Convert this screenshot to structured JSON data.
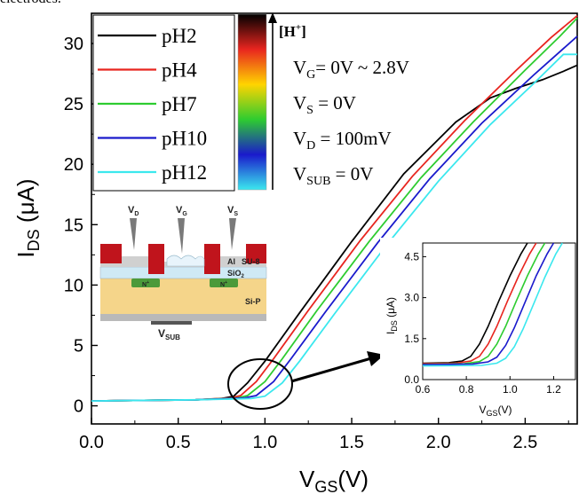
{
  "caption_fragment": "electrodes.",
  "chart_data": [
    {
      "type": "line",
      "x_label": "V",
      "x_label_sub": "GS",
      "x_label_tail": "(V)",
      "y_label": "I",
      "y_label_sub": "DS",
      "y_label_tail": " (μA)",
      "xlim": [
        0.0,
        2.8
      ],
      "ylim": [
        -1.5,
        32.5
      ],
      "x_ticks": [
        "0.0",
        "0.5",
        "1.0",
        "1.5",
        "2.0",
        "2.5"
      ],
      "x_tick_values": [
        0.0,
        0.5,
        1.0,
        1.5,
        2.0,
        2.5
      ],
      "y_ticks": [
        "0",
        "5",
        "10",
        "15",
        "20",
        "25",
        "30"
      ],
      "y_tick_values": [
        0,
        5,
        10,
        15,
        20,
        25,
        30
      ],
      "legend_position": "top-left",
      "series": [
        {
          "name": "pH2",
          "color": "#000000",
          "x": [
            0.0,
            0.6,
            0.75,
            0.82,
            0.9,
            1.0,
            1.2,
            1.5,
            1.8,
            2.1,
            2.3,
            2.45,
            2.6,
            2.72,
            2.8
          ],
          "y": [
            0.4,
            0.5,
            0.6,
            0.8,
            1.9,
            3.7,
            7.7,
            13.6,
            19.2,
            23.5,
            25.5,
            26.3,
            27.0,
            27.7,
            28.2
          ]
        },
        {
          "name": "pH4",
          "color": "#e8251f",
          "x": [
            0.0,
            0.6,
            0.8,
            0.86,
            0.95,
            1.05,
            1.25,
            1.55,
            1.85,
            2.15,
            2.45,
            2.65,
            2.8
          ],
          "y": [
            0.4,
            0.5,
            0.65,
            0.85,
            2.0,
            3.9,
            7.9,
            13.7,
            19.0,
            23.6,
            27.8,
            30.5,
            32.3
          ]
        },
        {
          "name": "pH7",
          "color": "#2ecc30",
          "x": [
            0.0,
            0.6,
            0.84,
            0.9,
            1.0,
            1.1,
            1.3,
            1.6,
            1.9,
            2.2,
            2.5,
            2.7,
            2.8
          ],
          "y": [
            0.4,
            0.5,
            0.65,
            0.85,
            2.0,
            3.9,
            7.9,
            13.6,
            18.9,
            23.5,
            27.8,
            30.6,
            32.1
          ]
        },
        {
          "name": "pH10",
          "color": "#1a1acc",
          "x": [
            0.0,
            0.6,
            0.88,
            0.95,
            1.05,
            1.15,
            1.35,
            1.65,
            1.95,
            2.25,
            2.55,
            2.8
          ],
          "y": [
            0.4,
            0.5,
            0.65,
            0.85,
            2.0,
            3.9,
            7.8,
            13.5,
            18.8,
            23.4,
            27.4,
            30.6
          ]
        },
        {
          "name": "pH12",
          "color": "#3be8ee",
          "x": [
            0.0,
            0.6,
            0.92,
            1.0,
            1.1,
            1.2,
            1.4,
            1.7,
            2.0,
            2.3,
            2.55,
            2.72,
            2.8
          ],
          "y": [
            0.4,
            0.5,
            0.6,
            0.8,
            1.9,
            3.7,
            7.6,
            13.3,
            18.6,
            23.3,
            26.7,
            29.1,
            29.1
          ]
        }
      ],
      "annotations": {
        "bias_lines": [
          {
            "main": "V",
            "sub": "G",
            "tail": "= 0V ~ 2.8V"
          },
          {
            "main": "V",
            "sub": "S",
            "tail": " = 0V"
          },
          {
            "main": "V",
            "sub": "D",
            "tail": " = 100mV"
          },
          {
            "main": "V",
            "sub": "SUB",
            "tail": " = 0V"
          }
        ],
        "colorbar_label": "[H",
        "colorbar_label_sup": "+",
        "colorbar_label_tail": "]",
        "colorbar_colors": [
          "#000000",
          "#e8251f",
          "#ffd400",
          "#2ecc30",
          "#1a1acc",
          "#3be8ee"
        ]
      }
    },
    {
      "type": "line",
      "x_label": "V",
      "x_label_sub": "GS",
      "x_label_tail": "(V)",
      "y_label": "I",
      "y_label_sub": "DS",
      "y_label_tail": " (μA)",
      "xlim": [
        0.6,
        1.3
      ],
      "ylim": [
        0.0,
        5.0
      ],
      "x_ticks": [
        "0.6",
        "0.8",
        "1.0",
        "1.2"
      ],
      "x_tick_values": [
        0.6,
        0.8,
        1.0,
        1.2
      ],
      "y_ticks": [
        "0.0",
        "1.5",
        "3.0",
        "4.5"
      ],
      "y_tick_values": [
        0.0,
        1.5,
        3.0,
        4.5
      ],
      "series": [
        {
          "name": "pH2",
          "color": "#000000",
          "x": [
            0.6,
            0.72,
            0.78,
            0.82,
            0.86,
            0.9,
            0.95,
            1.0,
            1.05,
            1.08
          ],
          "y": [
            0.6,
            0.62,
            0.68,
            0.85,
            1.3,
            1.95,
            2.9,
            3.8,
            4.6,
            5.0
          ]
        },
        {
          "name": "pH4",
          "color": "#e8251f",
          "x": [
            0.6,
            0.75,
            0.82,
            0.86,
            0.9,
            0.94,
            0.99,
            1.04,
            1.09,
            1.12
          ],
          "y": [
            0.58,
            0.6,
            0.68,
            0.85,
            1.3,
            1.95,
            2.9,
            3.8,
            4.6,
            5.0
          ]
        },
        {
          "name": "pH7",
          "color": "#2ecc30",
          "x": [
            0.6,
            0.79,
            0.86,
            0.9,
            0.94,
            0.98,
            1.03,
            1.08,
            1.13,
            1.16
          ],
          "y": [
            0.56,
            0.58,
            0.66,
            0.85,
            1.3,
            1.95,
            2.9,
            3.8,
            4.6,
            5.0
          ]
        },
        {
          "name": "pH10",
          "color": "#1a1acc",
          "x": [
            0.6,
            0.83,
            0.9,
            0.94,
            0.98,
            1.02,
            1.07,
            1.12,
            1.17,
            1.2
          ],
          "y": [
            0.55,
            0.57,
            0.65,
            0.82,
            1.25,
            1.9,
            2.85,
            3.8,
            4.6,
            5.0
          ]
        },
        {
          "name": "pH12",
          "color": "#3be8ee",
          "x": [
            0.6,
            0.87,
            0.94,
            0.98,
            1.02,
            1.06,
            1.11,
            1.16,
            1.21,
            1.24
          ],
          "y": [
            0.5,
            0.52,
            0.6,
            0.78,
            1.2,
            1.85,
            2.8,
            3.75,
            4.6,
            5.0
          ]
        }
      ]
    }
  ],
  "device_schematic": {
    "probe_labels": [
      {
        "main": "V",
        "sub": "D"
      },
      {
        "main": "V",
        "sub": "G"
      },
      {
        "main": "V",
        "sub": "S"
      }
    ],
    "layer_labels": [
      "Al",
      "SU-8",
      "SiO",
      "Si-P"
    ],
    "sio2_sub": "2",
    "n_plus": [
      {
        "main": "N",
        "sup": "+"
      },
      {
        "main": "N",
        "sup": "+"
      }
    ],
    "substrate_label": {
      "main": "V",
      "sub": "SUB"
    },
    "colors": {
      "metal": "#c0141c",
      "su8": "#d0d0d0",
      "sio2": "#cfe9f5",
      "si": "#f5d58a",
      "implant": "#4c9a3a",
      "base": "#b9b9b9"
    }
  }
}
